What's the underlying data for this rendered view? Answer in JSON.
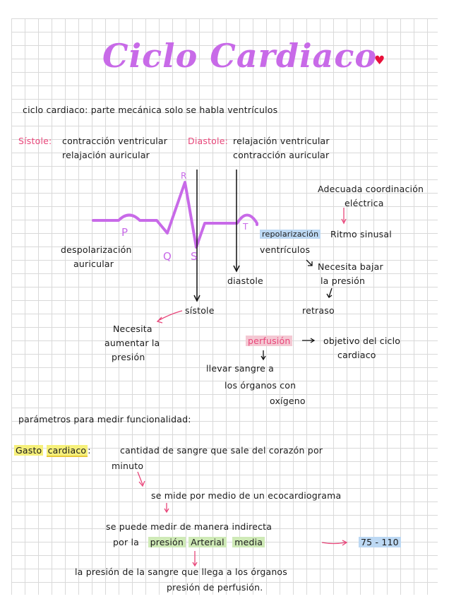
{
  "title": "Ciclo Cardiaco",
  "definition": "ciclo cardiaco: parte mecánica solo se habla ventrículos",
  "sistole": {
    "label": "Sístole:",
    "line1": "contracción ventricular",
    "line2": "relajación auricular"
  },
  "diastole": {
    "label": "Diastole:",
    "line1": "relajación ventricular",
    "line2": "contracción auricular"
  },
  "ecg": {
    "waves": [
      "P",
      "Q",
      "R",
      "S",
      "T"
    ],
    "despolarizacion": [
      "despolarización",
      "auricular"
    ],
    "repolarizacion": "repolarización",
    "ventriculos": "ventrículos",
    "sistole": "sístole",
    "diastole": "diastole"
  },
  "notes": {
    "adecuada": [
      "Adecuada coordinación",
      "eléctrica"
    ],
    "ritmo": "Ritmo sinusal",
    "necesita_bajar": [
      "Necesita bajar",
      "la presión"
    ],
    "retraso": "retraso",
    "necesita_aumentar": [
      "Necesita",
      "aumentar la",
      "presión"
    ]
  },
  "perfusion": {
    "word": "perfusión",
    "objetivo": [
      "objetivo del ciclo",
      "cardiaco"
    ],
    "llevar": [
      "llevar sangre a",
      "los órganos con",
      "oxígeno"
    ]
  },
  "parametros": "parámetros para medir funcionalidad:",
  "gasto": {
    "term1": "Gasto",
    "term2": "cardiaco",
    "def1": "cantidad de sangre que sale del corazón por",
    "def2": "minuto",
    "mide": "se mide por medio de un ecocardiograma",
    "indirecta": "se puede medir de manera indirecta",
    "por_la": "por la",
    "presion": "presión",
    "arterial": "Arterial",
    "media": "media",
    "range": "75 - 110",
    "final1": "la presión de la sangre que llega a los órganos",
    "final2": "presión de perfusión."
  },
  "colors": {
    "title": "#c86ae8",
    "accent_pink": "#e8467a",
    "heart": "#e8103a",
    "highlight_blue": "#bcd8f3",
    "highlight_pink": "#f4c8d3",
    "highlight_green": "#cfeab7",
    "highlight_yellow": "#f6f07a"
  },
  "icons": [
    "heart-icon",
    "arrow-icon"
  ]
}
